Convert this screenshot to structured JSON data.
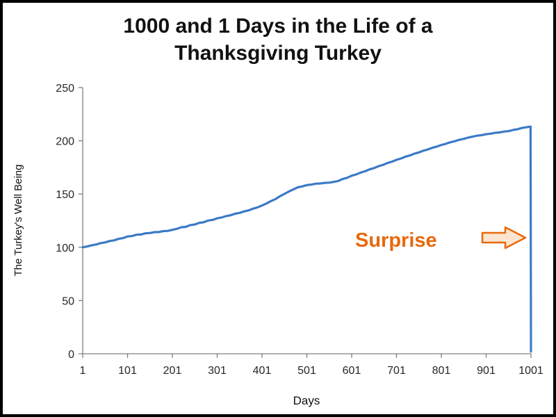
{
  "window": {
    "background": "#ffffff",
    "border_color": "#000000"
  },
  "chart_data": {
    "type": "line",
    "title": "1000 and 1 Days in the Life of a Thanksgiving Turkey",
    "xlabel": "Days",
    "ylabel": "The Turkey's Well Being",
    "xlim": [
      1,
      1001
    ],
    "ylim": [
      0,
      250
    ],
    "xticks": [
      1,
      101,
      201,
      301,
      401,
      501,
      601,
      701,
      801,
      901,
      1001
    ],
    "yticks": [
      0,
      50,
      100,
      150,
      200,
      250
    ],
    "grid": false,
    "legend": false,
    "axis_color": "#7F7F7F",
    "tick_label_color": "#262626",
    "series": [
      {
        "name": "The Turkey's Well Being",
        "color": "#3B7AC6",
        "points": [
          [
            1,
            100
          ],
          [
            11,
            100.8
          ],
          [
            21,
            101.9
          ],
          [
            31,
            102.6
          ],
          [
            41,
            103.9
          ],
          [
            51,
            104.6
          ],
          [
            61,
            105.9
          ],
          [
            71,
            106.5
          ],
          [
            81,
            107.9
          ],
          [
            91,
            108.6
          ],
          [
            101,
            110.2
          ],
          [
            111,
            110.6
          ],
          [
            121,
            111.8
          ],
          [
            131,
            112.0
          ],
          [
            141,
            113.1
          ],
          [
            151,
            113.4
          ],
          [
            161,
            114.2
          ],
          [
            171,
            114.3
          ],
          [
            181,
            115.2
          ],
          [
            191,
            115.4
          ],
          [
            201,
            116.4
          ],
          [
            211,
            117.3
          ],
          [
            221,
            118.8
          ],
          [
            231,
            119.2
          ],
          [
            241,
            120.8
          ],
          [
            251,
            121.4
          ],
          [
            261,
            123.0
          ],
          [
            271,
            123.5
          ],
          [
            281,
            125.1
          ],
          [
            291,
            125.7
          ],
          [
            301,
            127.2
          ],
          [
            311,
            128.0
          ],
          [
            321,
            129.3
          ],
          [
            331,
            130.1
          ],
          [
            341,
            131.5
          ],
          [
            351,
            132.3
          ],
          [
            361,
            133.7
          ],
          [
            371,
            134.6
          ],
          [
            381,
            136.2
          ],
          [
            391,
            137.5
          ],
          [
            401,
            139.2
          ],
          [
            411,
            141.1
          ],
          [
            421,
            143.4
          ],
          [
            431,
            145.3
          ],
          [
            441,
            147.9
          ],
          [
            451,
            150.1
          ],
          [
            461,
            152.4
          ],
          [
            471,
            154.3
          ],
          [
            481,
            156.3
          ],
          [
            491,
            157.2
          ],
          [
            501,
            158.4
          ],
          [
            511,
            158.9
          ],
          [
            521,
            159.7
          ],
          [
            531,
            159.9
          ],
          [
            541,
            160.5
          ],
          [
            551,
            160.7
          ],
          [
            561,
            161.4
          ],
          [
            571,
            162.3
          ],
          [
            581,
            164.1
          ],
          [
            591,
            165.3
          ],
          [
            601,
            167.2
          ],
          [
            611,
            168.4
          ],
          [
            621,
            170.2
          ],
          [
            631,
            171.4
          ],
          [
            641,
            173.2
          ],
          [
            651,
            174.4
          ],
          [
            661,
            176.2
          ],
          [
            671,
            177.4
          ],
          [
            681,
            179.2
          ],
          [
            691,
            180.4
          ],
          [
            701,
            182.1
          ],
          [
            711,
            183.4
          ],
          [
            721,
            185.1
          ],
          [
            731,
            186.3
          ],
          [
            741,
            187.9
          ],
          [
            751,
            189.1
          ],
          [
            761,
            190.7
          ],
          [
            771,
            191.9
          ],
          [
            781,
            193.5
          ],
          [
            791,
            194.6
          ],
          [
            801,
            196.1
          ],
          [
            811,
            197.2
          ],
          [
            821,
            198.6
          ],
          [
            831,
            199.6
          ],
          [
            841,
            200.9
          ],
          [
            851,
            201.8
          ],
          [
            861,
            203.1
          ],
          [
            871,
            203.9
          ],
          [
            881,
            204.8
          ],
          [
            891,
            205.3
          ],
          [
            901,
            206.2
          ],
          [
            911,
            206.7
          ],
          [
            921,
            207.5
          ],
          [
            931,
            207.9
          ],
          [
            941,
            208.7
          ],
          [
            951,
            209.1
          ],
          [
            961,
            210.2
          ],
          [
            971,
            210.9
          ],
          [
            981,
            212.1
          ],
          [
            991,
            212.7
          ],
          [
            996,
            213.1
          ],
          [
            1000,
            213.3
          ],
          [
            1001,
            2
          ]
        ]
      }
    ],
    "annotation": {
      "label": "Surprise",
      "color": "#E8690B",
      "arrow_fill": "#FBE5D0",
      "arrow": "right-arrow"
    }
  }
}
